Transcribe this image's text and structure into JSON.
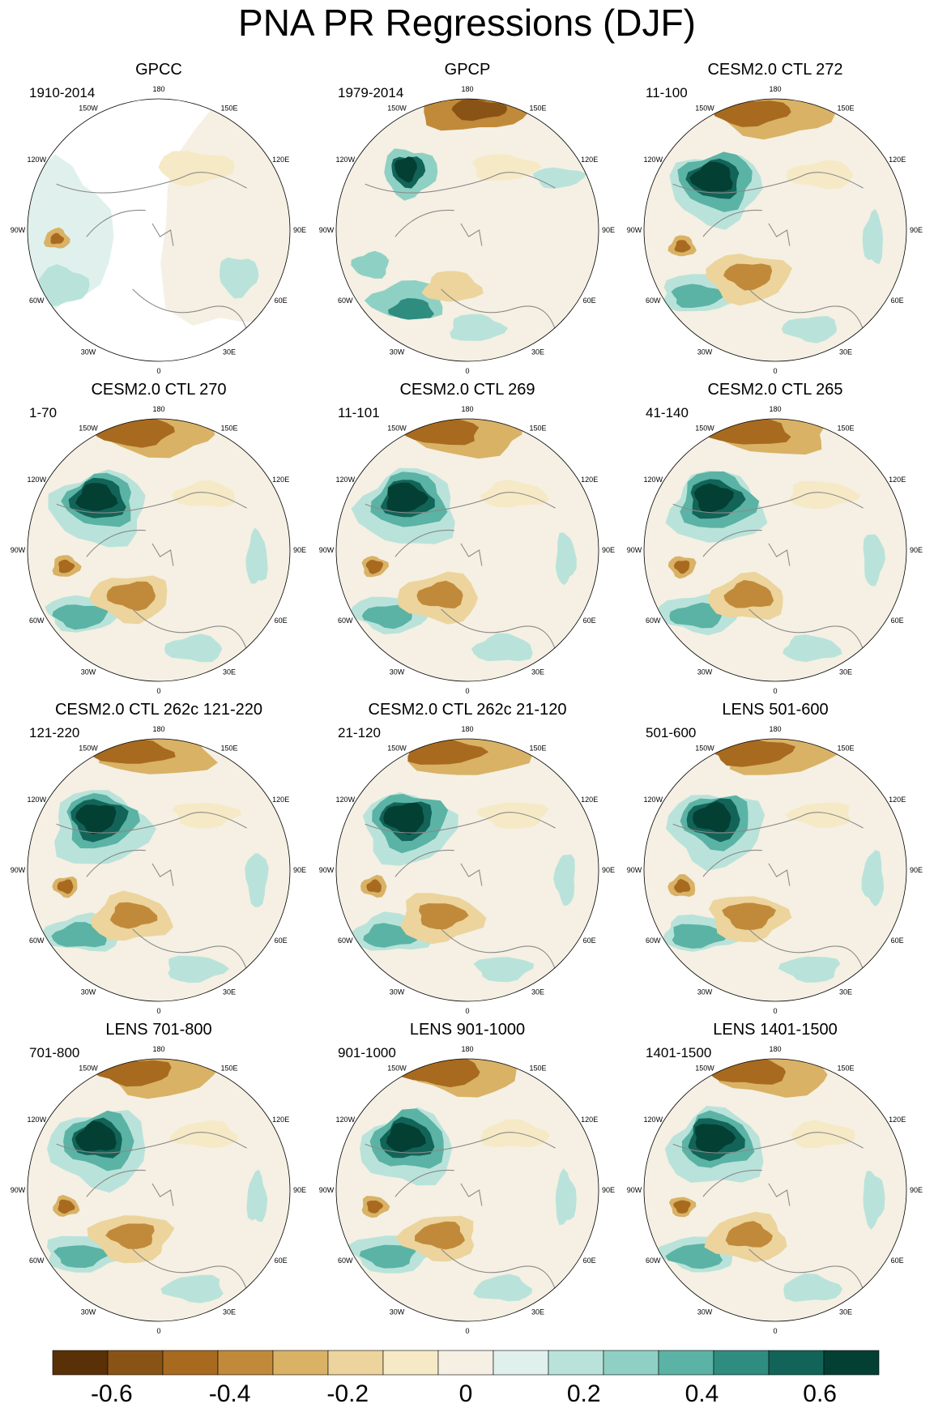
{
  "title": "PNA PR Regressions (DJF)",
  "chart_data": {
    "type": "polar-contour-map-panels",
    "variable": "PR",
    "season": "DJF",
    "projection": "north polar stereographic",
    "longitude_labels": [
      "180",
      "150W",
      "120W",
      "90W",
      "60W",
      "30W",
      "0",
      "30E",
      "60E",
      "90E",
      "120E",
      "150E"
    ],
    "panels": [
      {
        "title": "GPCC",
        "period": "1910-2014",
        "land_only": true
      },
      {
        "title": "GPCP",
        "period": "1979-2014"
      },
      {
        "title": "CESM2.0 CTL 272",
        "period": "11-100"
      },
      {
        "title": "CESM2.0 CTL 270",
        "period": "1-70"
      },
      {
        "title": "CESM2.0 CTL 269",
        "period": "11-101"
      },
      {
        "title": "CESM2.0 CTL 265",
        "period": "41-140"
      },
      {
        "title": "CESM2.0 CTL 262c 121-220",
        "period": "121-220"
      },
      {
        "title": "CESM2.0 CTL 262c 21-120",
        "period": "21-120"
      },
      {
        "title": "LENS 501-600",
        "period": "501-600"
      },
      {
        "title": "LENS 701-800",
        "period": "701-800"
      },
      {
        "title": "LENS 901-1000",
        "period": "901-1000"
      },
      {
        "title": "LENS 1401-1500",
        "period": "1401-1500"
      }
    ],
    "colorbar": {
      "levels": [
        -0.7,
        -0.6,
        -0.5,
        -0.4,
        -0.3,
        -0.2,
        -0.1,
        0,
        0.1,
        0.2,
        0.3,
        0.4,
        0.5,
        0.6,
        0.7
      ],
      "tick_labels": [
        "-0.6",
        "-0.4",
        "-0.2",
        "0",
        "0.2",
        "0.4",
        "0.6"
      ],
      "colors": [
        "#5a3006",
        "#8a5316",
        "#a86a1f",
        "#c18a3a",
        "#d9b266",
        "#ecd49c",
        "#f6e9c6",
        "#f5f0e3",
        "#e0f1ed",
        "#b9e3da",
        "#8ed1c4",
        "#5bb3a5",
        "#2f8d80",
        "#126458",
        "#043f34"
      ]
    }
  }
}
